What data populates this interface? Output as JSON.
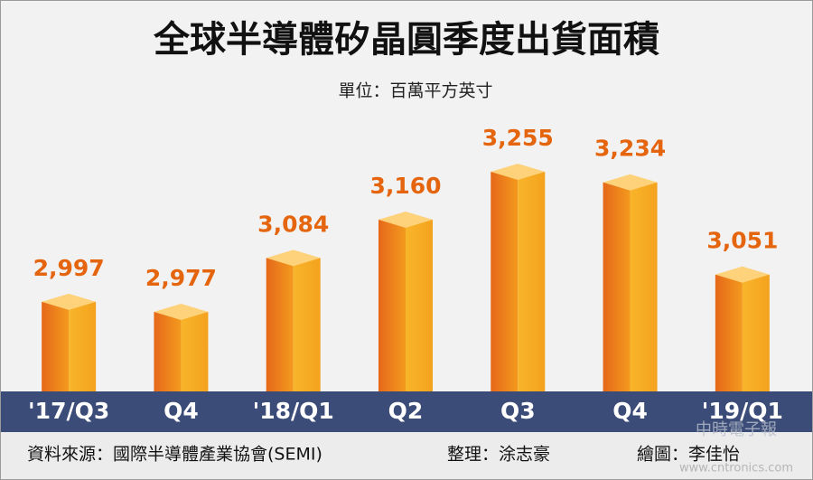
{
  "chart_data": {
    "type": "bar3d",
    "title": "全球半導體矽晶圓季度出貨面積",
    "subtitle": "單位：百萬平方英寸",
    "categories": [
      "'17/Q3",
      "Q4",
      "'18/Q1",
      "Q2",
      "Q3",
      "Q4",
      "'19/Q1"
    ],
    "values": [
      2997,
      2977,
      3084,
      3160,
      3255,
      3234,
      3051
    ],
    "value_labels": [
      "2,997",
      "2,977",
      "3,084",
      "3,160",
      "3,255",
      "3,234",
      "3,051"
    ],
    "color": "#f39a1e",
    "footer": {
      "source": "資料來源：國際半導體產業協會(SEMI)",
      "editor": "整理：涂志豪",
      "graphic": "繪圖：李佳怡"
    },
    "watermark": {
      "brand": "中時電子報",
      "url": "www.cntronics.com"
    }
  }
}
